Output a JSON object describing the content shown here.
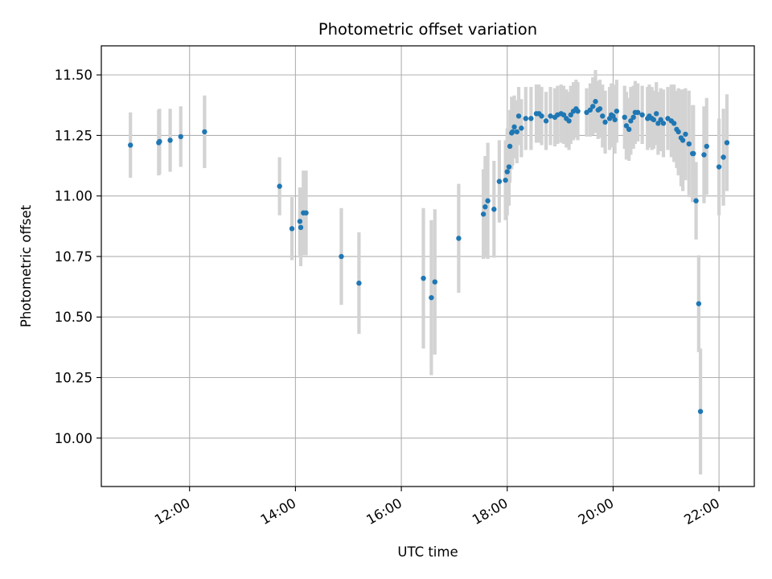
{
  "chart_data": {
    "type": "scatter",
    "title": "Photometric offset variation",
    "xlabel": "UTC time",
    "ylabel": "Photometric offset",
    "x_ticks": [
      "12:00",
      "14:00",
      "16:00",
      "18:00",
      "20:00",
      "22:00"
    ],
    "y_ticks": [
      "10.00",
      "10.25",
      "10.50",
      "10.75",
      "11.00",
      "11.25",
      "11.50"
    ],
    "xlim": [
      "10:20",
      "22:40"
    ],
    "ylim": [
      9.8,
      11.62
    ],
    "grid": true,
    "colors": {
      "points": "#1f77b4",
      "errorbars": "#d3d3d3",
      "grid": "#b0b0b0"
    },
    "series": [
      {
        "x": [
          "10:53",
          "11:25",
          "11:26",
          "11:38",
          "11:50",
          "12:17",
          "13:42",
          "13:56",
          "14:05",
          "14:06",
          "14:09",
          "14:12",
          "14:52",
          "15:12",
          "16:25",
          "16:34",
          "16:38",
          "17:05",
          "17:33",
          "17:35",
          "17:38",
          "17:45",
          "17:51",
          "17:58",
          "18:00",
          "18:02",
          "18:03",
          "18:05",
          "18:06",
          "18:08",
          "18:11",
          "18:13",
          "18:16",
          "18:21",
          "18:27",
          "18:33",
          "18:36",
          "18:39",
          "18:44",
          "18:49",
          "18:54",
          "18:57",
          "19:01",
          "19:04",
          "19:07",
          "19:10",
          "19:12",
          "19:15",
          "19:18",
          "19:20",
          "19:30",
          "19:34",
          "19:37",
          "19:40",
          "19:43",
          "19:45",
          "19:48",
          "19:51",
          "19:56",
          "19:58",
          "20:00",
          "20:02",
          "20:04",
          "20:13",
          "20:15",
          "20:18",
          "20:20",
          "20:23",
          "20:25",
          "20:28",
          "20:33",
          "20:39",
          "20:41",
          "20:44",
          "20:46",
          "20:49",
          "20:51",
          "20:54",
          "20:57",
          "21:02",
          "21:06",
          "21:09",
          "21:12",
          "21:14",
          "21:17",
          "21:19",
          "21:22",
          "21:26",
          "21:30",
          "21:31",
          "21:34",
          "21:37",
          "21:39",
          "21:43",
          "21:46",
          "22:00",
          "22:05",
          "22:09"
        ],
        "y": [
          11.21,
          11.22,
          11.225,
          11.23,
          11.245,
          11.265,
          11.04,
          10.865,
          10.895,
          10.87,
          10.93,
          10.93,
          10.75,
          10.64,
          10.66,
          10.58,
          10.645,
          10.825,
          10.925,
          10.955,
          10.98,
          10.945,
          11.06,
          11.065,
          11.1,
          11.12,
          11.205,
          11.26,
          11.265,
          11.285,
          11.265,
          11.33,
          11.28,
          11.32,
          11.32,
          11.34,
          11.34,
          11.33,
          11.31,
          11.33,
          11.325,
          11.335,
          11.34,
          11.335,
          11.32,
          11.31,
          11.335,
          11.35,
          11.36,
          11.35,
          11.345,
          11.355,
          11.37,
          11.39,
          11.355,
          11.36,
          11.33,
          11.305,
          11.32,
          11.335,
          11.33,
          11.315,
          11.35,
          11.325,
          11.29,
          11.275,
          11.31,
          11.325,
          11.345,
          11.345,
          11.335,
          11.32,
          11.33,
          11.32,
          11.315,
          11.34,
          11.3,
          11.315,
          11.3,
          11.32,
          11.31,
          11.3,
          11.275,
          11.265,
          11.24,
          11.23,
          11.255,
          11.215,
          11.175,
          11.175,
          10.98,
          10.555,
          10.11,
          11.17,
          11.205,
          11.12,
          11.16,
          11.22
        ],
        "err": [
          0.135,
          0.135,
          0.135,
          0.13,
          0.125,
          0.15,
          0.12,
          0.13,
          0.14,
          0.16,
          0.175,
          0.175,
          0.2,
          0.21,
          0.29,
          0.32,
          0.3,
          0.225,
          0.185,
          0.21,
          0.24,
          0.2,
          0.17,
          0.165,
          0.18,
          0.16,
          0.15,
          0.15,
          0.14,
          0.13,
          0.13,
          0.12,
          0.12,
          0.13,
          0.13,
          0.12,
          0.12,
          0.12,
          0.12,
          0.12,
          0.12,
          0.12,
          0.12,
          0.12,
          0.12,
          0.12,
          0.12,
          0.12,
          0.12,
          0.12,
          0.1,
          0.11,
          0.12,
          0.13,
          0.12,
          0.12,
          0.13,
          0.13,
          0.13,
          0.13,
          0.13,
          0.14,
          0.13,
          0.13,
          0.14,
          0.13,
          0.14,
          0.13,
          0.13,
          0.12,
          0.12,
          0.13,
          0.13,
          0.13,
          0.12,
          0.13,
          0.13,
          0.13,
          0.14,
          0.13,
          0.15,
          0.16,
          0.16,
          0.18,
          0.2,
          0.21,
          0.19,
          0.22,
          0.2,
          0.2,
          0.16,
          0.2,
          0.26,
          0.2,
          0.2,
          0.2,
          0.2,
          0.2
        ]
      }
    ]
  }
}
